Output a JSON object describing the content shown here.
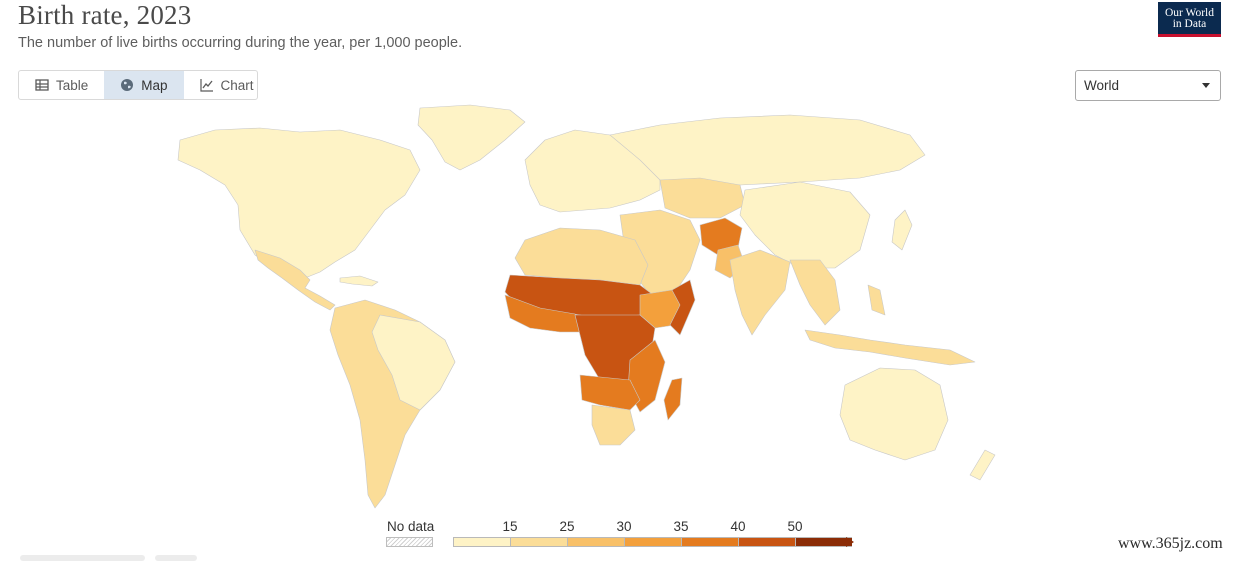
{
  "header": {
    "title": "Birth rate, 2023",
    "subtitle": "The number of live births occurring during the year, per 1,000 people.",
    "logo_line1": "Our World",
    "logo_line2": "in Data"
  },
  "tabs": [
    {
      "label": "Table",
      "icon": "table-icon",
      "active": false
    },
    {
      "label": "Map",
      "icon": "globe-icon",
      "active": true
    },
    {
      "label": "Chart",
      "icon": "line-chart-icon",
      "active": false
    }
  ],
  "region_select": {
    "value": "World"
  },
  "legend": {
    "no_data_label": "No data",
    "ticks": [
      "15",
      "25",
      "30",
      "35",
      "40",
      "50"
    ],
    "colors": [
      "#fef3c6",
      "#fbdd98",
      "#f8c068",
      "#f3a03c",
      "#e47b1f",
      "#c85412",
      "#8b2c06"
    ]
  },
  "watermark": "www.365jz.com"
}
